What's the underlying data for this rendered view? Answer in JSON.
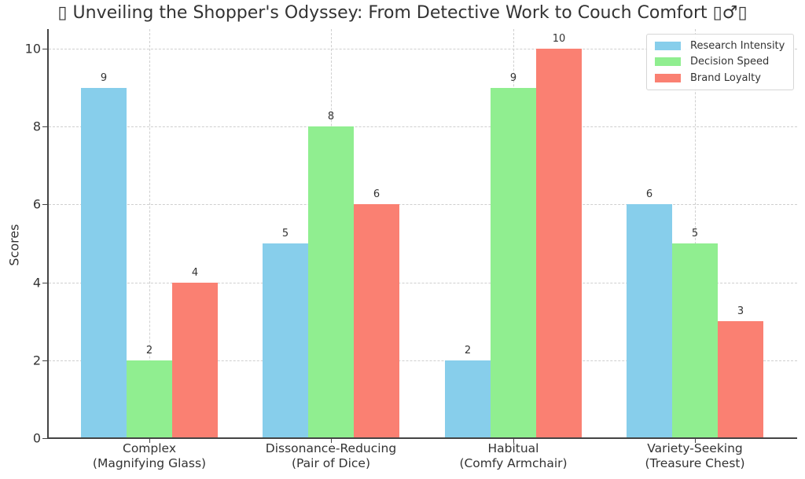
{
  "title": "▯ Unveiling the Shopper's Odyssey: From Detective Work to Couch Comfort ▯♂▯",
  "chart_data": {
    "type": "bar",
    "title": "▯ Unveiling the Shopper's Odyssey: From Detective Work to Couch Comfort ▯♂▯",
    "xlabel": "",
    "ylabel": "Scores",
    "ylim": [
      0,
      10.5
    ],
    "yticks": [
      0,
      2,
      4,
      6,
      8,
      10
    ],
    "grid": true,
    "legend_position": "upper right",
    "categories": [
      "Complex\n(Magnifying Glass)",
      "Dissonance-Reducing\n(Pair of Dice)",
      "Habitual\n(Comfy Armchair)",
      "Variety-Seeking\n(Treasure Chest)"
    ],
    "series": [
      {
        "name": "Research Intensity",
        "color": "#87CEEB",
        "values": [
          9,
          5,
          2,
          6
        ]
      },
      {
        "name": "Decision Speed",
        "color": "#90EE90",
        "values": [
          2,
          8,
          9,
          5
        ]
      },
      {
        "name": "Brand Loyalty",
        "color": "#FA8072",
        "values": [
          4,
          6,
          10,
          3
        ]
      }
    ]
  },
  "axis": {
    "ylabel": "Scores",
    "yticks": [
      "0",
      "2",
      "4",
      "6",
      "8",
      "10"
    ]
  },
  "categories": [
    {
      "line1": "Complex",
      "line2": "(Magnifying Glass)"
    },
    {
      "line1": "Dissonance-Reducing",
      "line2": "(Pair of Dice)"
    },
    {
      "line1": "Habitual",
      "line2": "(Comfy Armchair)"
    },
    {
      "line1": "Variety-Seeking",
      "line2": "(Treasure Chest)"
    }
  ],
  "legend": [
    {
      "label": "Research Intensity",
      "color": "#87CEEB"
    },
    {
      "label": "Decision Speed",
      "color": "#90EE90"
    },
    {
      "label": "Brand Loyalty",
      "color": "#FA8072"
    }
  ]
}
